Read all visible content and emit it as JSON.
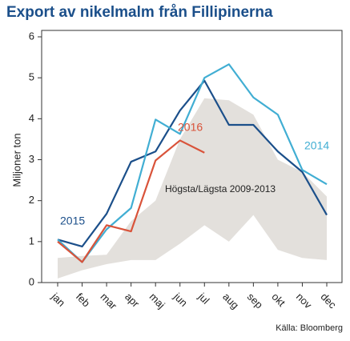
{
  "chart_data": {
    "type": "line",
    "title": "Export av nikelmalm från Fillipinerna",
    "ylabel": "Miljoner ton",
    "source": "Källa: Bloomberg",
    "categories": [
      "jan",
      "feb",
      "mar",
      "apr",
      "maj",
      "jun",
      "jul",
      "aug",
      "sep",
      "okt",
      "nov",
      "dec"
    ],
    "ylim": [
      0,
      6
    ],
    "yticks": [
      0,
      1,
      2,
      3,
      4,
      5,
      6
    ],
    "band": {
      "name": "Högsta/Lägsta 2009-2013",
      "color": "#e3e0dc",
      "low": [
        0.1,
        0.3,
        0.45,
        0.55,
        0.55,
        0.95,
        1.4,
        1.0,
        1.65,
        0.8,
        0.6,
        0.55
      ],
      "high": [
        0.6,
        0.65,
        0.68,
        1.5,
        2.0,
        3.5,
        4.5,
        4.45,
        4.1,
        3.0,
        2.7,
        2.1
      ]
    },
    "series": [
      {
        "name": "2015",
        "color": "#1b4f8a",
        "values": [
          1.05,
          0.88,
          1.68,
          2.95,
          3.2,
          4.2,
          4.93,
          3.85,
          3.85,
          3.2,
          2.7,
          1.65
        ]
      },
      {
        "name": "2014",
        "color": "#41aed3",
        "values": [
          1.05,
          0.5,
          1.3,
          1.82,
          3.98,
          3.63,
          5.0,
          5.33,
          4.52,
          4.1,
          2.75,
          2.4
        ]
      },
      {
        "name": "2016",
        "color": "#d9533a",
        "values": [
          1.0,
          0.5,
          1.4,
          1.25,
          2.98,
          3.47,
          3.17,
          null,
          null,
          null,
          null,
          null
        ]
      }
    ]
  }
}
